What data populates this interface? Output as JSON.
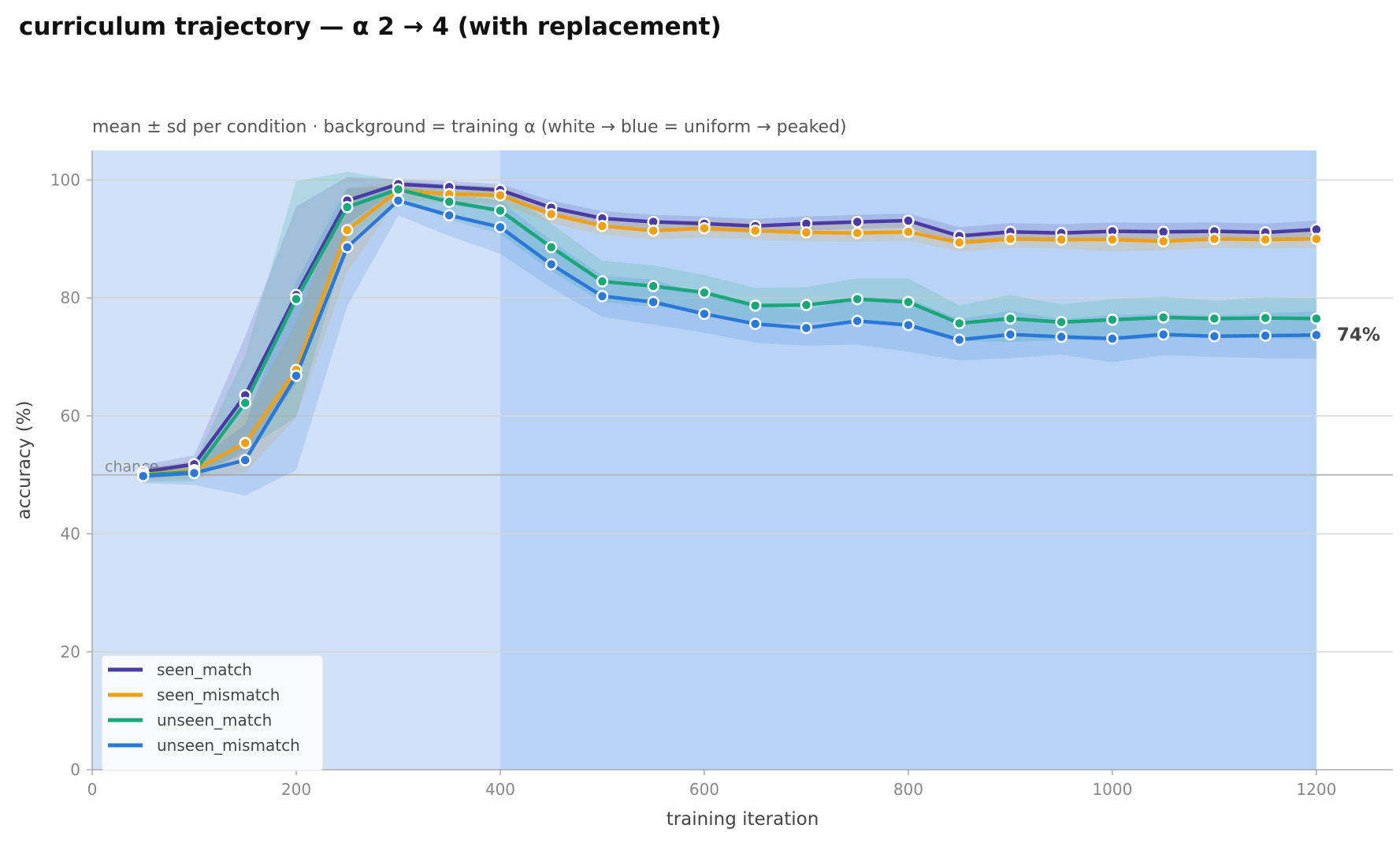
{
  "chart_data": {
    "type": "line",
    "title": "curriculum trajectory — α 2 → 4 (with replacement)",
    "subtitle": "mean ± sd per condition · background = training α (white → blue = uniform → peaked)",
    "xlabel": "training iteration",
    "ylabel": "accuracy (%)",
    "xlim": [
      0,
      1275
    ],
    "ylim": [
      0,
      105
    ],
    "xticks": [
      0,
      200,
      400,
      600,
      800,
      1000,
      1200
    ],
    "yticks": [
      0,
      20,
      40,
      60,
      80,
      100
    ],
    "grid": "horizontal",
    "legend_position": "bottom-left",
    "chance_line": {
      "y": 50,
      "label": "chance"
    },
    "end_label": "74%",
    "background_regions": [
      {
        "x0": 0,
        "x1": 400,
        "color": "#d0e1f8"
      },
      {
        "x0": 400,
        "x1": 1200,
        "color": "#b8d3f5"
      }
    ],
    "x": [
      50,
      100,
      150,
      200,
      250,
      300,
      350,
      400,
      450,
      500,
      550,
      600,
      650,
      700,
      750,
      800,
      850,
      900,
      950,
      1000,
      1050,
      1100,
      1150,
      1200
    ],
    "series": [
      {
        "name": "seen_match",
        "color": "#4a3aa6",
        "values": [
          50.5,
          51.8,
          63.5,
          80.5,
          96.5,
          99.3,
          98.8,
          98.3,
          95.3,
          93.5,
          92.9,
          92.6,
          92.2,
          92.6,
          92.9,
          93.1,
          90.5,
          91.2,
          91.0,
          91.3,
          91.2,
          91.3,
          91.1,
          91.6
        ],
        "sd": [
          1.2,
          1.5,
          10.0,
          15.0,
          4.0,
          0.8,
          1.0,
          1.0,
          1.2,
          1.2,
          1.2,
          1.2,
          1.2,
          1.2,
          1.2,
          1.2,
          1.5,
          1.5,
          1.5,
          1.5,
          1.5,
          1.5,
          1.5,
          1.5
        ]
      },
      {
        "name": "seen_mismatch",
        "color": "#f0a010",
        "values": [
          50.1,
          50.8,
          55.4,
          67.8,
          91.5,
          98.2,
          97.6,
          97.4,
          94.2,
          92.2,
          91.4,
          91.8,
          91.4,
          91.1,
          91.0,
          91.2,
          89.4,
          90.0,
          89.9,
          89.9,
          89.6,
          90.0,
          89.9,
          90.0
        ],
        "sd": [
          1.0,
          1.5,
          5.0,
          8.0,
          7.0,
          1.5,
          1.5,
          1.5,
          1.5,
          1.5,
          1.5,
          1.5,
          1.5,
          1.5,
          1.5,
          1.5,
          1.5,
          1.5,
          1.5,
          2.0,
          1.5,
          1.5,
          1.5,
          1.5
        ]
      },
      {
        "name": "unseen_match",
        "color": "#1aa87a",
        "values": [
          50.0,
          50.5,
          62.2,
          79.8,
          95.4,
          98.4,
          96.3,
          94.8,
          88.6,
          82.8,
          82.0,
          80.9,
          78.7,
          78.8,
          79.8,
          79.3,
          75.7,
          76.5,
          75.9,
          76.3,
          76.7,
          76.5,
          76.6,
          76.5
        ],
        "sd": [
          1.2,
          1.5,
          8.0,
          20.0,
          6.0,
          1.5,
          3.0,
          4.0,
          4.0,
          3.5,
          3.5,
          3.0,
          3.0,
          3.0,
          3.5,
          4.0,
          3.0,
          4.0,
          3.0,
          3.5,
          3.5,
          3.0,
          3.5,
          3.5
        ]
      },
      {
        "name": "unseen_mismatch",
        "color": "#2a78d8",
        "values": [
          49.8,
          50.3,
          52.5,
          66.8,
          88.6,
          96.5,
          94.0,
          92.0,
          85.7,
          80.3,
          79.3,
          77.3,
          75.6,
          74.9,
          76.1,
          75.4,
          72.9,
          73.8,
          73.4,
          73.1,
          73.8,
          73.5,
          73.6,
          73.7
        ],
        "sd": [
          1.2,
          2.0,
          6.0,
          16.0,
          10.0,
          2.5,
          3.5,
          4.5,
          4.0,
          3.5,
          3.8,
          3.2,
          3.2,
          3.0,
          4.0,
          4.5,
          3.5,
          4.0,
          3.0,
          4.0,
          3.5,
          3.5,
          3.8,
          4.0
        ]
      }
    ]
  }
}
